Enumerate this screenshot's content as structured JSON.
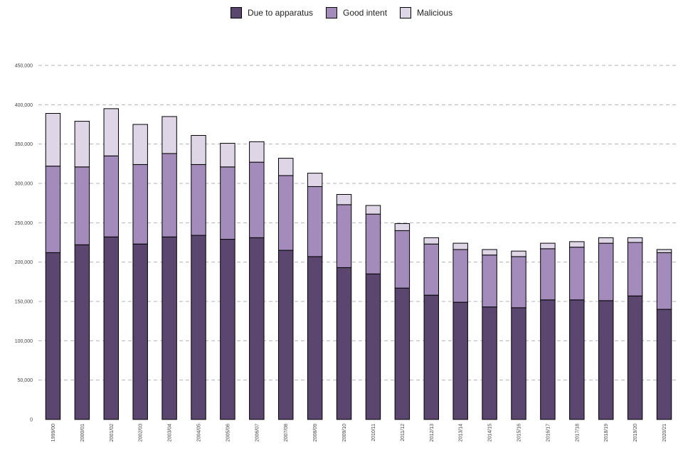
{
  "chart_data": {
    "type": "bar",
    "stacked": true,
    "title": "",
    "xlabel": "",
    "ylabel": "",
    "ylim": [
      0,
      450000
    ],
    "grid": true,
    "legend_position": "top",
    "y_ticks": [
      0,
      50000,
      100000,
      150000,
      200000,
      250000,
      300000,
      350000,
      400000,
      450000
    ],
    "y_tick_labels": [
      "0",
      "50,000",
      "100,000",
      "150,000",
      "200,000",
      "250,000",
      "300,000",
      "350,000",
      "400,000",
      "450,000"
    ],
    "categories": [
      "1999/00",
      "2000/01",
      "2001/02",
      "2002/03",
      "2003/04",
      "2004/05",
      "2005/06",
      "2006/07",
      "2007/08",
      "2008/09",
      "2009/10",
      "2010/11",
      "2011/12",
      "2012/13",
      "2013/14",
      "2014/15",
      "2015/16",
      "2016/17",
      "2017/18",
      "2018/19",
      "2019/20",
      "2020/21"
    ],
    "series": [
      {
        "name": "Due to apparatus",
        "color": "#5b466f",
        "values": [
          212000,
          222000,
          232000,
          223000,
          232000,
          234000,
          229000,
          231000,
          215000,
          207000,
          193000,
          185000,
          167000,
          158000,
          149000,
          143000,
          142000,
          152000,
          152000,
          151000,
          157000,
          140000
        ]
      },
      {
        "name": "Good intent",
        "color": "#a38bbb",
        "values": [
          110000,
          99000,
          103000,
          101000,
          106000,
          90000,
          92000,
          96000,
          95000,
          89000,
          80000,
          76000,
          73000,
          65000,
          67000,
          66000,
          65000,
          65000,
          67000,
          73000,
          68000,
          72000
        ]
      },
      {
        "name": "Malicious",
        "color": "#ded5e7",
        "values": [
          67000,
          58000,
          60000,
          51000,
          47000,
          37000,
          30000,
          26000,
          22000,
          17000,
          13000,
          11000,
          9000,
          8000,
          8000,
          7000,
          7000,
          7000,
          7000,
          7000,
          6000,
          4000
        ]
      }
    ]
  }
}
